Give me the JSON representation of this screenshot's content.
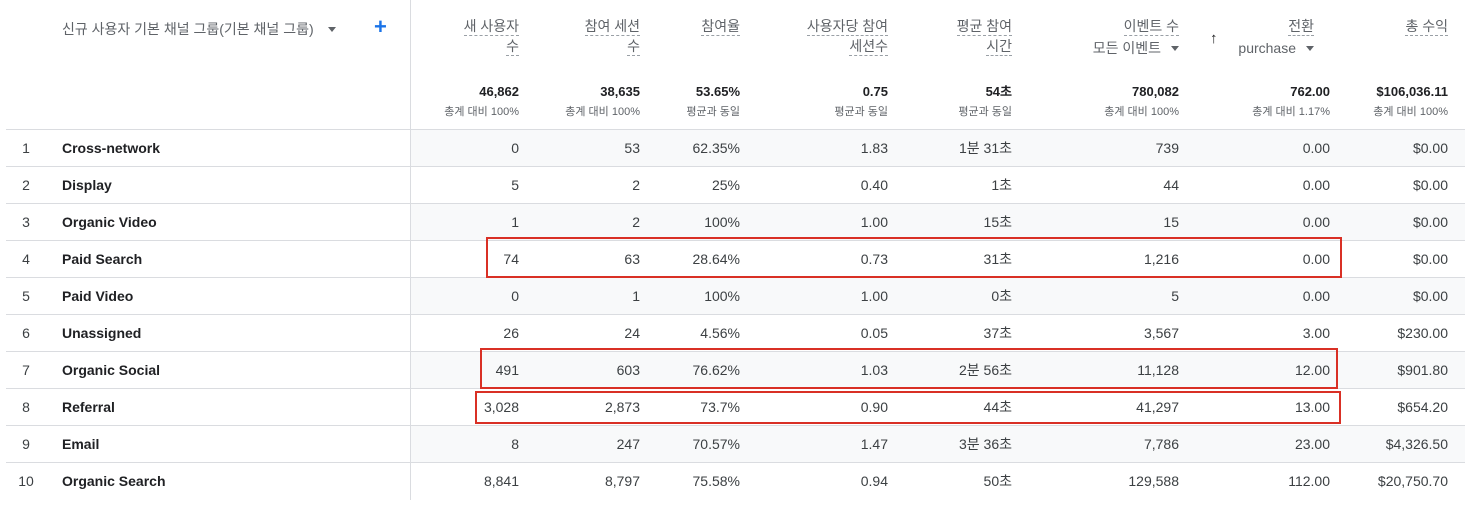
{
  "dimension_header": {
    "label": "신규 사용자 기본 채널 그룹(기본 채널 그룹)",
    "add_symbol": "+"
  },
  "columns": [
    {
      "line1": "새 사용자",
      "line2": "수",
      "dashed": true
    },
    {
      "line1": "참여 세션",
      "line2": "수",
      "dashed": true
    },
    {
      "line1": "참여율",
      "line2": "",
      "dashed": true
    },
    {
      "line1": "사용자당 참여",
      "line2": "세션수",
      "dashed": true
    },
    {
      "line1": "평균 참여",
      "line2": "시간",
      "dashed": true
    },
    {
      "line1": "이벤트 수",
      "line2": "모든 이벤트",
      "dashed": true,
      "dropdown": true
    },
    {
      "line1": "전환",
      "line2": "purchase",
      "dashed": true,
      "dropdown": true,
      "sort_arrow": "↑"
    },
    {
      "line1": "총 수익",
      "line2": "",
      "dashed": true
    }
  ],
  "totals": [
    {
      "value": "46,862",
      "sub": "총계 대비 100%"
    },
    {
      "value": "38,635",
      "sub": "총계 대비 100%"
    },
    {
      "value": "53.65%",
      "sub": "평균과 동일"
    },
    {
      "value": "0.75",
      "sub": "평균과 동일"
    },
    {
      "value": "54초",
      "sub": "평균과 동일"
    },
    {
      "value": "780,082",
      "sub": "총계 대비 100%"
    },
    {
      "value": "762.00",
      "sub": "총계 대비 1.17%"
    },
    {
      "value": "$106,036.11",
      "sub": "총계 대비 100%"
    }
  ],
  "rows": [
    {
      "idx": "1",
      "name": "Cross-network",
      "cells": [
        "0",
        "53",
        "62.35%",
        "1.83",
        "1분 31초",
        "739",
        "0.00",
        "$0.00"
      ]
    },
    {
      "idx": "2",
      "name": "Display",
      "cells": [
        "5",
        "2",
        "25%",
        "0.40",
        "1초",
        "44",
        "0.00",
        "$0.00"
      ]
    },
    {
      "idx": "3",
      "name": "Organic Video",
      "cells": [
        "1",
        "2",
        "100%",
        "1.00",
        "15초",
        "15",
        "0.00",
        "$0.00"
      ]
    },
    {
      "idx": "4",
      "name": "Paid Search",
      "cells": [
        "74",
        "63",
        "28.64%",
        "0.73",
        "31초",
        "1,216",
        "0.00",
        "$0.00"
      ]
    },
    {
      "idx": "5",
      "name": "Paid Video",
      "cells": [
        "0",
        "1",
        "100%",
        "1.00",
        "0초",
        "5",
        "0.00",
        "$0.00"
      ]
    },
    {
      "idx": "6",
      "name": "Unassigned",
      "cells": [
        "26",
        "24",
        "4.56%",
        "0.05",
        "37초",
        "3,567",
        "3.00",
        "$230.00"
      ]
    },
    {
      "idx": "7",
      "name": "Organic Social",
      "cells": [
        "491",
        "603",
        "76.62%",
        "1.03",
        "2분 56초",
        "11,128",
        "12.00",
        "$901.80"
      ]
    },
    {
      "idx": "8",
      "name": "Referral",
      "cells": [
        "3,028",
        "2,873",
        "73.7%",
        "0.90",
        "44초",
        "41,297",
        "13.00",
        "$654.20"
      ]
    },
    {
      "idx": "9",
      "name": "Email",
      "cells": [
        "8",
        "247",
        "70.57%",
        "1.47",
        "3분 36초",
        "7,786",
        "23.00",
        "$4,326.50"
      ]
    },
    {
      "idx": "10",
      "name": "Organic Search",
      "cells": [
        "8,841",
        "8,797",
        "75.58%",
        "0.94",
        "50초",
        "129,588",
        "112.00",
        "$20,750.70"
      ]
    }
  ],
  "highlight_color": "#d93025"
}
